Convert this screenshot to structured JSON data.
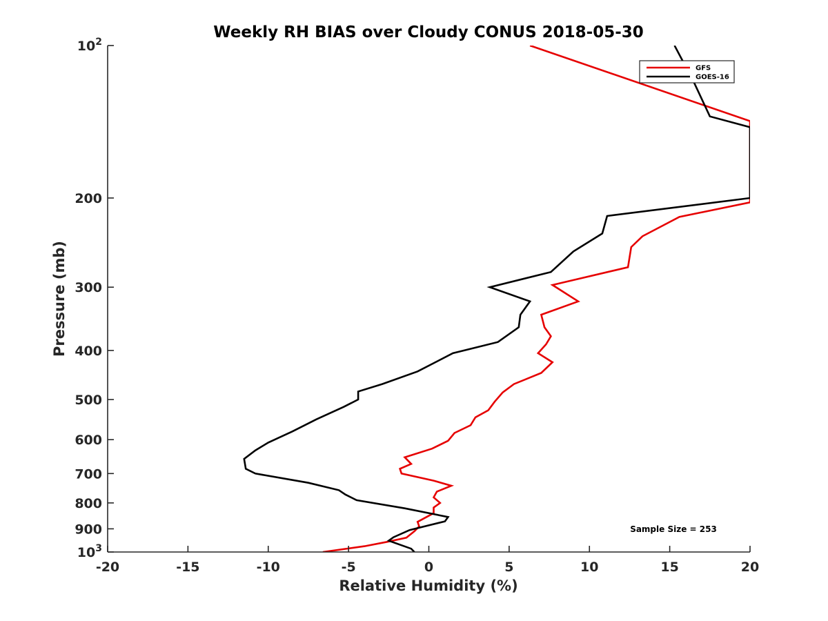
{
  "chart_data": {
    "type": "line",
    "title": "Weekly RH BIAS over Cloudy CONUS 2018-05-30",
    "xlabel": "Relative Humidity (%)",
    "ylabel": "Pressure (mb)",
    "xlim": [
      -20,
      20
    ],
    "ylim": [
      100,
      1000
    ],
    "y_scale": "log",
    "y_reversed": true,
    "grid": false,
    "legend_position": "top-right",
    "x_ticks": [
      "-20",
      "-15",
      "-10",
      "-5",
      "0",
      "5",
      "10",
      "15",
      "20"
    ],
    "y_ticks": [
      {
        "value": 100,
        "base": "10",
        "exp": "2"
      },
      {
        "value": 200,
        "label": "200"
      },
      {
        "value": 300,
        "label": "300"
      },
      {
        "value": 400,
        "label": "400"
      },
      {
        "value": 500,
        "label": "500"
      },
      {
        "value": 600,
        "label": "600"
      },
      {
        "value": 700,
        "label": "700"
      },
      {
        "value": 800,
        "label": "800"
      },
      {
        "value": 900,
        "label": "900"
      },
      {
        "value": 1000,
        "base": "10",
        "exp": "3"
      }
    ],
    "annotation": "Sample Size = 253",
    "series": [
      {
        "name": "GFS",
        "color": "#e60000",
        "points": [
          [
            6.3,
            100
          ],
          [
            20.0,
            141
          ],
          [
            20.0,
            204
          ],
          [
            15.6,
            218
          ],
          [
            13.3,
            238
          ],
          [
            12.6,
            250
          ],
          [
            12.4,
            274
          ],
          [
            7.7,
            297
          ],
          [
            9.3,
            320
          ],
          [
            7.0,
            340
          ],
          [
            7.2,
            360
          ],
          [
            7.6,
            375
          ],
          [
            7.3,
            389
          ],
          [
            6.8,
            405
          ],
          [
            7.7,
            422
          ],
          [
            7.0,
            443
          ],
          [
            5.3,
            466
          ],
          [
            4.6,
            484
          ],
          [
            4.1,
            505
          ],
          [
            3.7,
            525
          ],
          [
            2.9,
            542
          ],
          [
            2.6,
            562
          ],
          [
            1.6,
            582
          ],
          [
            1.2,
            603
          ],
          [
            0.2,
            625
          ],
          [
            -1.5,
            650
          ],
          [
            -1.1,
            670
          ],
          [
            -1.8,
            685
          ],
          [
            -1.7,
            700
          ],
          [
            0.3,
            723
          ],
          [
            1.4,
            740
          ],
          [
            0.5,
            760
          ],
          [
            0.3,
            780
          ],
          [
            0.7,
            800
          ],
          [
            0.3,
            817
          ],
          [
            0.3,
            838
          ],
          [
            -0.7,
            872
          ],
          [
            -0.6,
            890
          ],
          [
            -0.9,
            910
          ],
          [
            -1.4,
            937
          ],
          [
            -2.6,
            955
          ],
          [
            -4.0,
            974
          ],
          [
            -6.6,
            1000
          ]
        ]
      },
      {
        "name": "GOES-16",
        "color": "#000000",
        "points": [
          [
            15.3,
            100
          ],
          [
            16.5,
            118
          ],
          [
            17.5,
            138
          ],
          [
            20.0,
            145
          ],
          [
            20.0,
            200
          ],
          [
            11.1,
            217
          ],
          [
            10.8,
            235
          ],
          [
            9.0,
            255
          ],
          [
            7.6,
            280
          ],
          [
            3.8,
            300
          ],
          [
            6.3,
            320
          ],
          [
            5.7,
            340
          ],
          [
            5.6,
            360
          ],
          [
            4.3,
            385
          ],
          [
            1.5,
            405
          ],
          [
            -0.7,
            440
          ],
          [
            -2.9,
            466
          ],
          [
            -4.4,
            482
          ],
          [
            -4.4,
            500
          ],
          [
            -5.3,
            517
          ],
          [
            -7.0,
            547
          ],
          [
            -8.5,
            578
          ],
          [
            -10.0,
            608
          ],
          [
            -10.8,
            630
          ],
          [
            -11.5,
            655
          ],
          [
            -11.4,
            685
          ],
          [
            -10.8,
            700
          ],
          [
            -7.5,
            730
          ],
          [
            -5.6,
            755
          ],
          [
            -5.2,
            770
          ],
          [
            -4.5,
            790
          ],
          [
            -1.5,
            820
          ],
          [
            1.2,
            853
          ],
          [
            1.0,
            870
          ],
          [
            -1.2,
            905
          ],
          [
            -2.2,
            935
          ],
          [
            -2.5,
            950
          ],
          [
            -1.1,
            985
          ],
          [
            -0.9,
            1000
          ]
        ]
      }
    ]
  }
}
